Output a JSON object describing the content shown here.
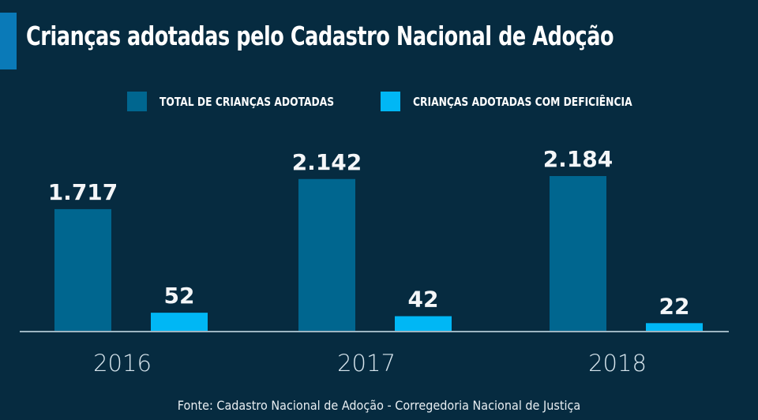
{
  "title": "Crianças adotadas pelo Cadastro Nacional de Adoção",
  "source": "Fonte: Cadastro Nacional de Adoção - Corregedoria Nacional de Justiça",
  "colors": {
    "background": "#062b40",
    "accent": "#0a7ab8",
    "total": "#00668f",
    "deficiencia": "#00b7f5",
    "axis": "#cfe3ee",
    "text": "#ffffff"
  },
  "chart_data": {
    "type": "bar",
    "title": "Crianças adotadas pelo Cadastro Nacional de Adoção",
    "xlabel": "",
    "ylabel": "",
    "categories": [
      "2016",
      "2017",
      "2018"
    ],
    "series": [
      {
        "name": "TOTAL  DE CRIANÇAS ADOTADAS",
        "color": "#00668f",
        "values": [
          1717,
          2142,
          2184
        ],
        "labels": [
          "1.717",
          "2.142",
          "2.184"
        ]
      },
      {
        "name": "CRIANÇAS ADOTADAS COM DEFICIÊNCIA",
        "color": "#00b7f5",
        "values": [
          52,
          42,
          22
        ],
        "labels": [
          "52",
          "42",
          "22"
        ]
      }
    ],
    "grid": false,
    "legend": "top-center",
    "y_axis_visible": false
  }
}
